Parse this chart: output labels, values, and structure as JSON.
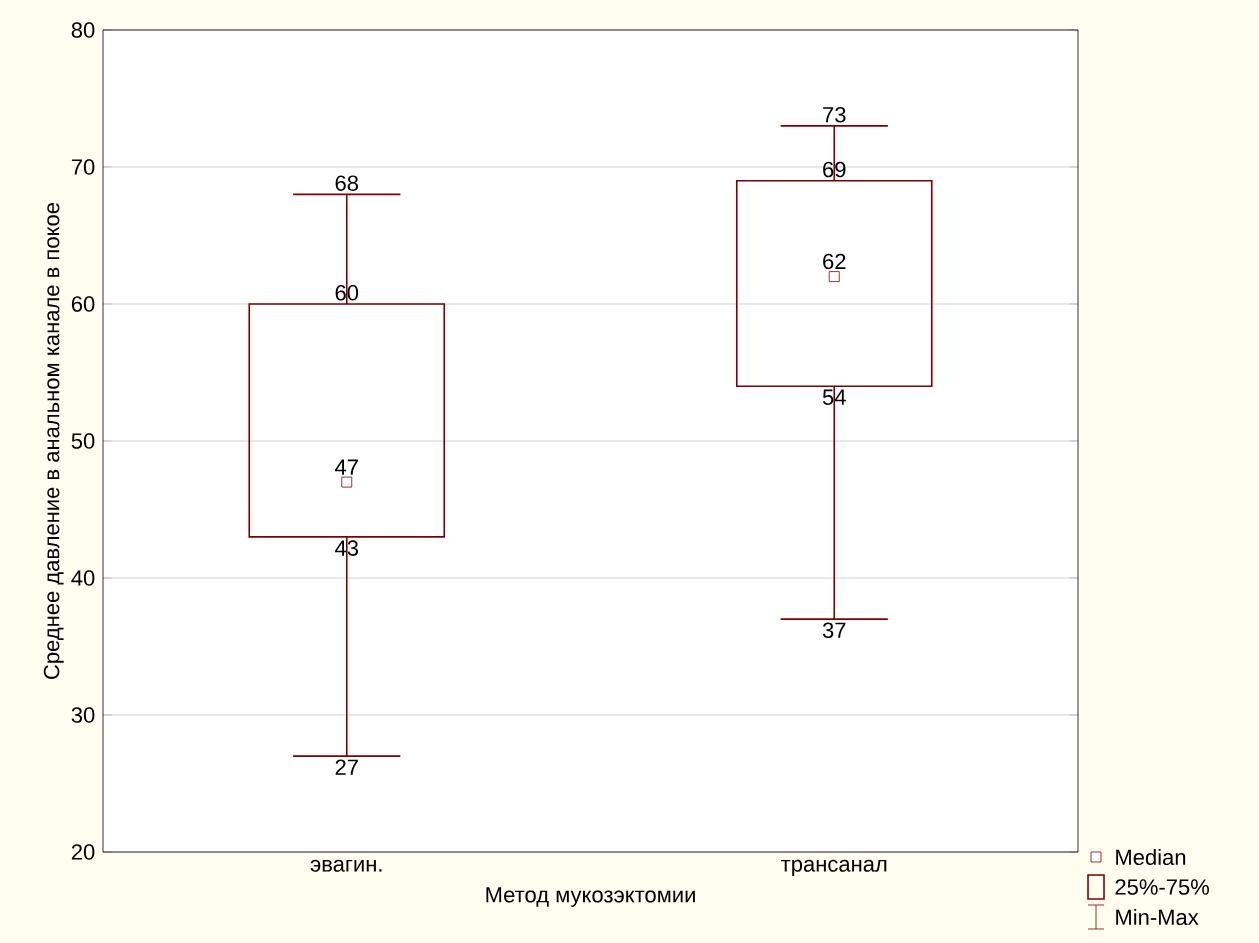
{
  "chart_data": {
    "type": "box",
    "xlabel": "Метод мукозэктомии",
    "ylabel": "Среднее давление в анальном канале в покое",
    "categories": [
      "эвагин.",
      "трансанал"
    ],
    "boxes": [
      {
        "low": 27,
        "q1": 43,
        "median": 47,
        "q3": 60,
        "high": 68
      },
      {
        "low": 37,
        "q1": 54,
        "median": 62,
        "q3": 69,
        "high": 73
      }
    ],
    "color": "#800000",
    "ylim": [
      20,
      80
    ],
    "yticks": [
      20,
      30,
      40,
      50,
      60,
      70,
      80
    ],
    "grid": "y",
    "marker": "square",
    "annotations": [
      "Median",
      "25%-75%",
      "Min-Max",
      {
        "text": "68",
        "x": "эвагин.",
        "y": 68
      },
      {
        "text": "60",
        "x": "эвагин.",
        "y": 60
      },
      {
        "text": "47",
        "x": "эвагин.",
        "y": 47
      },
      {
        "text": "43",
        "x": "эвагин.",
        "y": 43
      },
      {
        "text": "27",
        "x": "эвагин.",
        "y": 27
      },
      {
        "text": "73",
        "x": "трансанал",
        "y": 73
      },
      {
        "text": "69",
        "x": "трансанал",
        "y": 69
      },
      {
        "text": "62",
        "x": "трансанал",
        "y": 62
      },
      {
        "text": "54",
        "x": "трансанал",
        "y": 54
      },
      {
        "text": "37",
        "x": "трансанал",
        "y": 37
      }
    ]
  }
}
